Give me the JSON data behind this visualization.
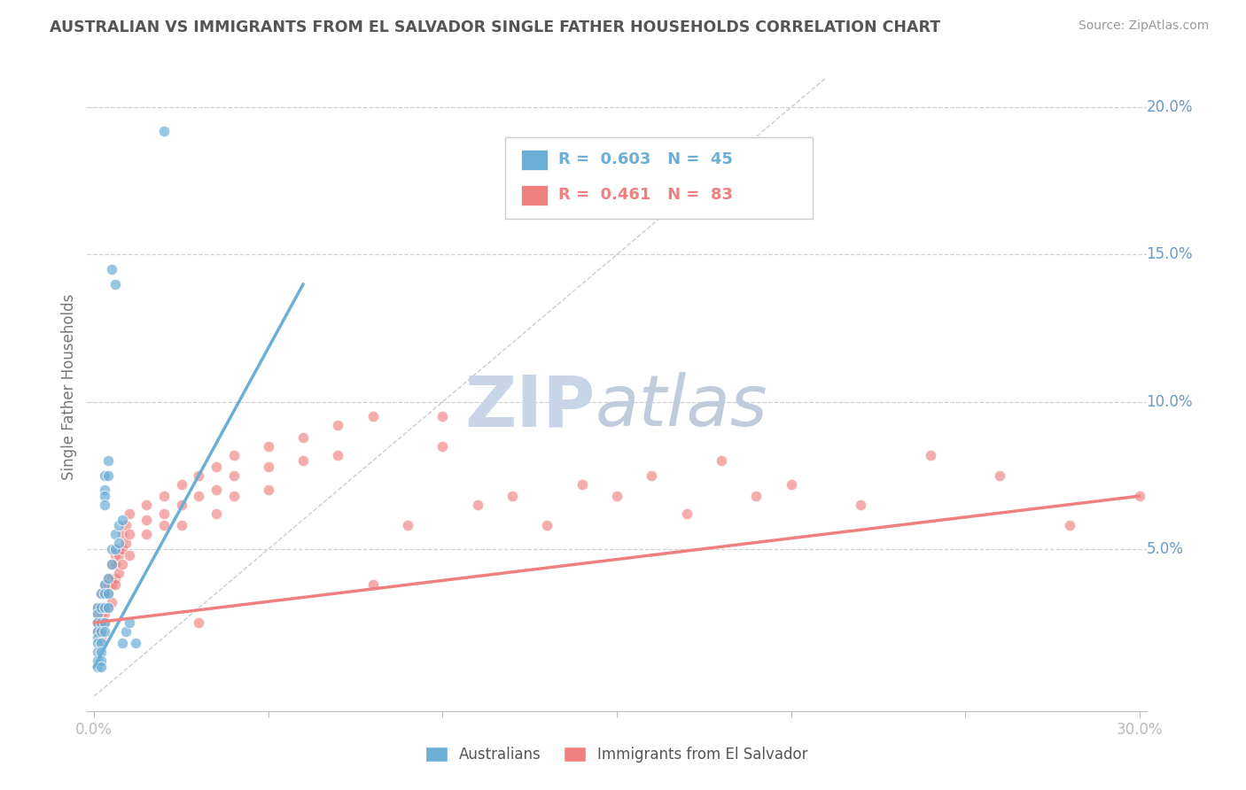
{
  "title": "AUSTRALIAN VS IMMIGRANTS FROM EL SALVADOR SINGLE FATHER HOUSEHOLDS CORRELATION CHART",
  "source": "Source: ZipAtlas.com",
  "ylabel": "Single Father Households",
  "watermark_top": "ZIP",
  "watermark_bot": "atlas",
  "legend_blue_r": "R = 0.603",
  "legend_blue_n": "N = 45",
  "legend_pink_r": "R = 0.461",
  "legend_pink_n": "N = 83",
  "blue_color": "#6baed6",
  "pink_color": "#f08080",
  "blue_scatter": [
    [
      0.001,
      0.03
    ],
    [
      0.001,
      0.028
    ],
    [
      0.001,
      0.025
    ],
    [
      0.001,
      0.022
    ],
    [
      0.001,
      0.02
    ],
    [
      0.001,
      0.018
    ],
    [
      0.001,
      0.015
    ],
    [
      0.001,
      0.012
    ],
    [
      0.001,
      0.01
    ],
    [
      0.002,
      0.035
    ],
    [
      0.002,
      0.03
    ],
    [
      0.002,
      0.025
    ],
    [
      0.002,
      0.022
    ],
    [
      0.002,
      0.018
    ],
    [
      0.002,
      0.015
    ],
    [
      0.002,
      0.012
    ],
    [
      0.002,
      0.01
    ],
    [
      0.003,
      0.075
    ],
    [
      0.003,
      0.07
    ],
    [
      0.003,
      0.068
    ],
    [
      0.003,
      0.065
    ],
    [
      0.003,
      0.038
    ],
    [
      0.003,
      0.035
    ],
    [
      0.003,
      0.03
    ],
    [
      0.003,
      0.025
    ],
    [
      0.003,
      0.022
    ],
    [
      0.004,
      0.08
    ],
    [
      0.004,
      0.075
    ],
    [
      0.004,
      0.04
    ],
    [
      0.004,
      0.035
    ],
    [
      0.004,
      0.03
    ],
    [
      0.005,
      0.145
    ],
    [
      0.005,
      0.05
    ],
    [
      0.005,
      0.045
    ],
    [
      0.006,
      0.14
    ],
    [
      0.006,
      0.055
    ],
    [
      0.006,
      0.05
    ],
    [
      0.007,
      0.058
    ],
    [
      0.007,
      0.052
    ],
    [
      0.008,
      0.06
    ],
    [
      0.008,
      0.018
    ],
    [
      0.009,
      0.022
    ],
    [
      0.01,
      0.025
    ],
    [
      0.012,
      0.018
    ],
    [
      0.02,
      0.192
    ]
  ],
  "pink_scatter": [
    [
      0.001,
      0.03
    ],
    [
      0.001,
      0.028
    ],
    [
      0.001,
      0.025
    ],
    [
      0.001,
      0.022
    ],
    [
      0.002,
      0.035
    ],
    [
      0.002,
      0.03
    ],
    [
      0.002,
      0.028
    ],
    [
      0.002,
      0.025
    ],
    [
      0.002,
      0.022
    ],
    [
      0.002,
      0.02
    ],
    [
      0.003,
      0.038
    ],
    [
      0.003,
      0.035
    ],
    [
      0.003,
      0.03
    ],
    [
      0.003,
      0.028
    ],
    [
      0.003,
      0.025
    ],
    [
      0.004,
      0.04
    ],
    [
      0.004,
      0.038
    ],
    [
      0.004,
      0.035
    ],
    [
      0.004,
      0.03
    ],
    [
      0.005,
      0.045
    ],
    [
      0.005,
      0.04
    ],
    [
      0.005,
      0.038
    ],
    [
      0.005,
      0.032
    ],
    [
      0.006,
      0.048
    ],
    [
      0.006,
      0.045
    ],
    [
      0.006,
      0.04
    ],
    [
      0.006,
      0.038
    ],
    [
      0.007,
      0.05
    ],
    [
      0.007,
      0.048
    ],
    [
      0.007,
      0.042
    ],
    [
      0.008,
      0.055
    ],
    [
      0.008,
      0.05
    ],
    [
      0.008,
      0.045
    ],
    [
      0.009,
      0.058
    ],
    [
      0.009,
      0.052
    ],
    [
      0.01,
      0.062
    ],
    [
      0.01,
      0.055
    ],
    [
      0.01,
      0.048
    ],
    [
      0.015,
      0.065
    ],
    [
      0.015,
      0.06
    ],
    [
      0.015,
      0.055
    ],
    [
      0.02,
      0.068
    ],
    [
      0.02,
      0.062
    ],
    [
      0.02,
      0.058
    ],
    [
      0.025,
      0.072
    ],
    [
      0.025,
      0.065
    ],
    [
      0.025,
      0.058
    ],
    [
      0.03,
      0.075
    ],
    [
      0.03,
      0.068
    ],
    [
      0.03,
      0.025
    ],
    [
      0.035,
      0.078
    ],
    [
      0.035,
      0.07
    ],
    [
      0.035,
      0.062
    ],
    [
      0.04,
      0.082
    ],
    [
      0.04,
      0.075
    ],
    [
      0.04,
      0.068
    ],
    [
      0.05,
      0.085
    ],
    [
      0.05,
      0.078
    ],
    [
      0.05,
      0.07
    ],
    [
      0.06,
      0.088
    ],
    [
      0.06,
      0.08
    ],
    [
      0.07,
      0.092
    ],
    [
      0.07,
      0.082
    ],
    [
      0.08,
      0.095
    ],
    [
      0.08,
      0.038
    ],
    [
      0.09,
      0.058
    ],
    [
      0.1,
      0.095
    ],
    [
      0.1,
      0.085
    ],
    [
      0.11,
      0.065
    ],
    [
      0.12,
      0.068
    ],
    [
      0.13,
      0.058
    ],
    [
      0.14,
      0.072
    ],
    [
      0.15,
      0.068
    ],
    [
      0.16,
      0.075
    ],
    [
      0.17,
      0.062
    ],
    [
      0.18,
      0.08
    ],
    [
      0.19,
      0.068
    ],
    [
      0.2,
      0.072
    ],
    [
      0.22,
      0.065
    ],
    [
      0.24,
      0.082
    ],
    [
      0.26,
      0.075
    ],
    [
      0.28,
      0.058
    ],
    [
      0.3,
      0.068
    ]
  ],
  "blue_line_x": [
    0.0,
    0.06
  ],
  "blue_line_y": [
    0.01,
    0.14
  ],
  "pink_line_x": [
    0.0,
    0.3
  ],
  "pink_line_y": [
    0.025,
    0.068
  ],
  "diag_line_x": [
    0.0,
    0.21
  ],
  "diag_line_y": [
    0.0,
    0.21
  ],
  "xlim": [
    -0.002,
    0.302
  ],
  "ylim": [
    -0.005,
    0.215
  ],
  "ytick_vals": [
    0.05,
    0.1,
    0.15,
    0.2
  ],
  "ytick_labels": [
    "5.0%",
    "10.0%",
    "15.0%",
    "20.0%"
  ],
  "xtick_vals": [
    0.0,
    0.05,
    0.1,
    0.15,
    0.2,
    0.25,
    0.3
  ],
  "xtick_labels": [
    "0.0%",
    "",
    "",
    "",
    "",
    "",
    "30.0%"
  ],
  "background_color": "#ffffff",
  "grid_color": "#cccccc",
  "title_color": "#555555",
  "axis_tick_color": "#6699cc",
  "watermark_zip_color": "#c8d4e8",
  "watermark_atlas_color": "#c0ccdc"
}
